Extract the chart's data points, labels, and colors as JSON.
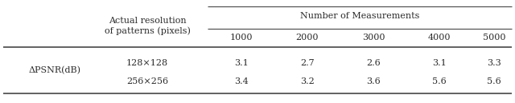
{
  "col_header_top": "Number of Measurements",
  "col_header_sub": [
    "1000",
    "2000",
    "3000",
    "4000",
    "5000"
  ],
  "row_header_left": "ΔPSNR(dB)",
  "row_header_mid": "Actual resolution\nof patterns (pixels)",
  "row_labels": [
    "128×128",
    "256×256"
  ],
  "data": [
    [
      "3.1",
      "2.7",
      "2.6",
      "3.1",
      "3.3"
    ],
    [
      "3.4",
      "3.2",
      "3.6",
      "5.6",
      "5.6"
    ]
  ],
  "bg_color": "#ffffff",
  "text_color": "#2b2b2b",
  "line_color": "#555555",
  "font_size": 8.0
}
